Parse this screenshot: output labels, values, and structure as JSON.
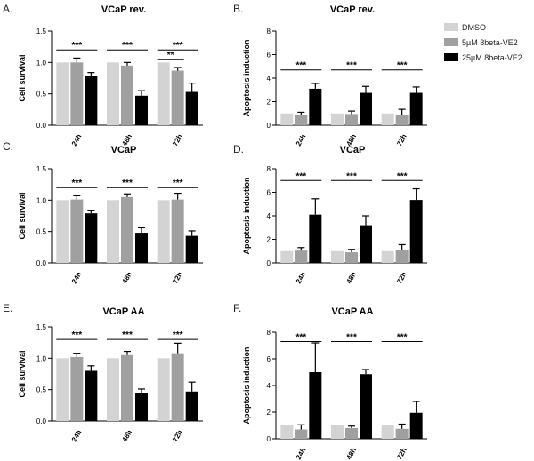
{
  "legend": [
    {
      "name": "DMSO",
      "color": "#d3d3d3"
    },
    {
      "name": "5µM 8beta-VE2",
      "color": "#a0a0a0"
    },
    {
      "name": "25µM 8beta-VE2",
      "color": "#000000"
    }
  ],
  "chart_data": [
    {
      "letter": "A.",
      "title": "VCaP rev.",
      "type": "bar",
      "ylabel": "Cell survival",
      "ylim": [
        0,
        1.5
      ],
      "yticks": [
        0.0,
        0.5,
        1.0,
        1.5
      ],
      "ytick_labels": [
        "0.0",
        "0.5",
        "1.0",
        "1.5"
      ],
      "categories": [
        "24h",
        "48h",
        "72h"
      ],
      "series": [
        {
          "name": "DMSO",
          "values": [
            1.0,
            1.0,
            1.0
          ],
          "errors": [
            0,
            0,
            0
          ]
        },
        {
          "name": "5µM 8beta-VE2",
          "values": [
            1.0,
            0.95,
            0.87
          ],
          "errors": [
            0.07,
            0.05,
            0.05
          ]
        },
        {
          "name": "25µM 8beta-VE2",
          "values": [
            0.79,
            0.47,
            0.53
          ],
          "errors": [
            0.05,
            0.08,
            0.14
          ]
        }
      ],
      "significance": [
        {
          "category": 0,
          "from": 0,
          "to": 2,
          "y": 1.2,
          "label": "***"
        },
        {
          "category": 1,
          "from": 0,
          "to": 2,
          "y": 1.2,
          "label": "***"
        },
        {
          "category": 2,
          "from": 0,
          "to": 2,
          "y": 1.2,
          "label": "***"
        },
        {
          "category": 2,
          "from": 0,
          "to": 1,
          "y": 1.05,
          "label": "**"
        }
      ]
    },
    {
      "letter": "B.",
      "title": "VCaP rev.",
      "type": "bar",
      "ylabel": "Apoptosis induction",
      "ylim": [
        0,
        8
      ],
      "yticks": [
        0,
        2,
        4,
        6,
        8
      ],
      "ytick_labels": [
        "0",
        "2",
        "4",
        "6",
        "8"
      ],
      "categories": [
        "24h",
        "48h",
        "72h"
      ],
      "series": [
        {
          "name": "DMSO",
          "values": [
            1.0,
            1.0,
            1.0
          ],
          "errors": [
            0,
            0,
            0
          ]
        },
        {
          "name": "5µM 8beta-VE2",
          "values": [
            0.9,
            0.95,
            0.9
          ],
          "errors": [
            0.2,
            0.25,
            0.45
          ]
        },
        {
          "name": "25µM 8beta-VE2",
          "values": [
            3.1,
            2.75,
            2.75
          ],
          "errors": [
            0.45,
            0.55,
            0.5
          ]
        }
      ],
      "significance": [
        {
          "category": 0,
          "from": 0,
          "to": 2,
          "y": 4.7,
          "label": "***"
        },
        {
          "category": 1,
          "from": 0,
          "to": 2,
          "y": 4.7,
          "label": "***"
        },
        {
          "category": 2,
          "from": 0,
          "to": 2,
          "y": 4.7,
          "label": "***"
        }
      ]
    },
    {
      "letter": "C.",
      "title": "VCaP",
      "type": "bar",
      "ylabel": "Cell survival",
      "ylim": [
        0,
        1.5
      ],
      "yticks": [
        0.0,
        0.5,
        1.0,
        1.5
      ],
      "ytick_labels": [
        "0.0",
        "0.5",
        "1.0",
        "1.5"
      ],
      "categories": [
        "24h",
        "48h",
        "72h"
      ],
      "series": [
        {
          "name": "DMSO",
          "values": [
            1.0,
            1.0,
            1.0
          ],
          "errors": [
            0,
            0,
            0
          ]
        },
        {
          "name": "5µM 8beta-VE2",
          "values": [
            1.01,
            1.05,
            1.01
          ],
          "errors": [
            0.06,
            0.05,
            0.1
          ]
        },
        {
          "name": "25µM 8beta-VE2",
          "values": [
            0.79,
            0.48,
            0.43
          ],
          "errors": [
            0.05,
            0.08,
            0.08
          ]
        }
      ],
      "significance": [
        {
          "category": 0,
          "from": 0,
          "to": 2,
          "y": 1.2,
          "label": "***"
        },
        {
          "category": 1,
          "from": 0,
          "to": 2,
          "y": 1.2,
          "label": "***"
        },
        {
          "category": 2,
          "from": 0,
          "to": 2,
          "y": 1.2,
          "label": "***"
        }
      ]
    },
    {
      "letter": "D.",
      "title": "VCaP",
      "type": "bar",
      "ylabel": "Apoptosis induction",
      "ylim": [
        0,
        8
      ],
      "yticks": [
        0,
        2,
        4,
        6,
        8
      ],
      "ytick_labels": [
        "0",
        "2",
        "4",
        "6",
        "8"
      ],
      "categories": [
        "24h",
        "48h",
        "72h"
      ],
      "series": [
        {
          "name": "DMSO",
          "values": [
            1.0,
            1.0,
            1.0
          ],
          "errors": [
            0,
            0,
            0
          ]
        },
        {
          "name": "5µM 8beta-VE2",
          "values": [
            1.05,
            0.9,
            1.1
          ],
          "errors": [
            0.25,
            0.25,
            0.45
          ]
        },
        {
          "name": "25µM 8beta-VE2",
          "values": [
            4.1,
            3.2,
            5.35
          ],
          "errors": [
            1.35,
            0.8,
            0.95
          ]
        }
      ],
      "significance": [
        {
          "category": 0,
          "from": 0,
          "to": 2,
          "y": 7.0,
          "label": "***"
        },
        {
          "category": 1,
          "from": 0,
          "to": 2,
          "y": 7.0,
          "label": "***"
        },
        {
          "category": 2,
          "from": 0,
          "to": 2,
          "y": 7.0,
          "label": "***"
        }
      ]
    },
    {
      "letter": "E.",
      "title": "VCaP AA",
      "type": "bar",
      "ylabel": "Cell survival",
      "ylim": [
        0,
        1.5
      ],
      "yticks": [
        0.0,
        0.5,
        1.0,
        1.5
      ],
      "ytick_labels": [
        "0.0",
        "0.5",
        "1.0",
        "1.5"
      ],
      "categories": [
        "24h",
        "48h",
        "72h"
      ],
      "series": [
        {
          "name": "DMSO",
          "values": [
            1.0,
            1.0,
            1.0
          ],
          "errors": [
            0,
            0,
            0
          ]
        },
        {
          "name": "5µM 8beta-VE2",
          "values": [
            1.02,
            1.05,
            1.08
          ],
          "errors": [
            0.06,
            0.06,
            0.16
          ]
        },
        {
          "name": "25µM 8beta-VE2",
          "values": [
            0.8,
            0.45,
            0.47
          ],
          "errors": [
            0.08,
            0.06,
            0.15
          ]
        }
      ],
      "significance": [
        {
          "category": 0,
          "from": 0,
          "to": 2,
          "y": 1.3,
          "label": "***"
        },
        {
          "category": 1,
          "from": 0,
          "to": 2,
          "y": 1.3,
          "label": "***"
        },
        {
          "category": 2,
          "from": 0,
          "to": 2,
          "y": 1.3,
          "label": "***"
        }
      ]
    },
    {
      "letter": "F.",
      "title": "VCaP AA",
      "type": "bar",
      "ylabel": "Apoptosis induction",
      "ylim": [
        0,
        8
      ],
      "yticks": [
        0,
        2,
        4,
        6,
        8
      ],
      "ytick_labels": [
        "0",
        "2",
        "4",
        "6",
        "8"
      ],
      "categories": [
        "24h",
        "48h",
        "72h"
      ],
      "series": [
        {
          "name": "DMSO",
          "values": [
            1.0,
            1.0,
            1.0
          ],
          "errors": [
            0,
            0,
            0
          ]
        },
        {
          "name": "5µM 8beta-VE2",
          "values": [
            0.7,
            0.8,
            0.75
          ],
          "errors": [
            0.35,
            0.15,
            0.35
          ]
        },
        {
          "name": "25µM 8beta-VE2",
          "values": [
            5.0,
            4.85,
            1.95
          ],
          "errors": [
            2.2,
            0.35,
            0.85
          ]
        }
      ],
      "significance": [
        {
          "category": 0,
          "from": 0,
          "to": 2,
          "y": 7.3,
          "label": "***"
        },
        {
          "category": 1,
          "from": 0,
          "to": 2,
          "y": 7.3,
          "label": "***"
        },
        {
          "category": 2,
          "from": 0,
          "to": 2,
          "y": 7.3,
          "label": "***"
        }
      ]
    }
  ]
}
